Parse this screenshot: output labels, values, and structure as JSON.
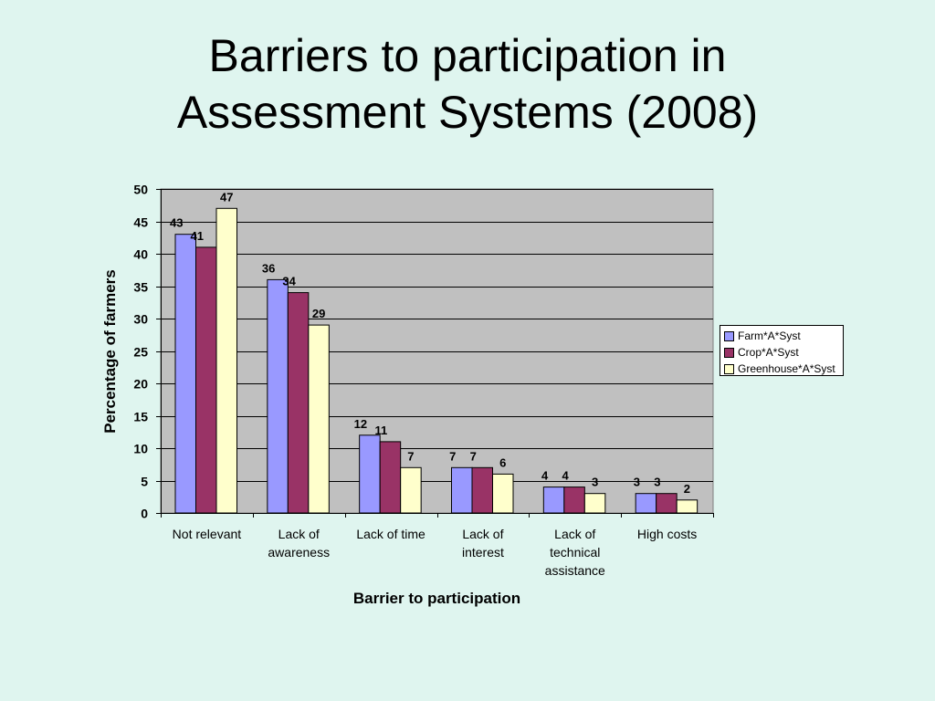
{
  "slide": {
    "title_line1": "Barriers to participation in",
    "title_line2": "Assessment Systems (2008)"
  },
  "chart_data": {
    "type": "bar",
    "title": "Barriers to participation in Assessment Systems (2008)",
    "xlabel": "Barrier to participation",
    "ylabel": "Percentage of farmers",
    "ylim": [
      0,
      50
    ],
    "yticks": [
      0,
      5,
      10,
      15,
      20,
      25,
      30,
      35,
      40,
      45,
      50
    ],
    "grid": true,
    "legend_position": "right",
    "categories": [
      [
        "Not relevant"
      ],
      [
        "Lack of",
        "awareness"
      ],
      [
        "Lack of time"
      ],
      [
        "Lack of",
        "interest"
      ],
      [
        "Lack of",
        "technical",
        "assistance"
      ],
      [
        "High costs"
      ]
    ],
    "series": [
      {
        "name": "Farm*A*Syst",
        "color": "#9999ff",
        "values": [
          43,
          36,
          12,
          7,
          4,
          3
        ]
      },
      {
        "name": "Crop*A*Syst",
        "color": "#993366",
        "values": [
          41,
          34,
          11,
          7,
          4,
          3
        ]
      },
      {
        "name": "Greenhouse*A*Syst",
        "color": "#ffffcc",
        "values": [
          47,
          29,
          7,
          6,
          3,
          2
        ]
      }
    ]
  }
}
